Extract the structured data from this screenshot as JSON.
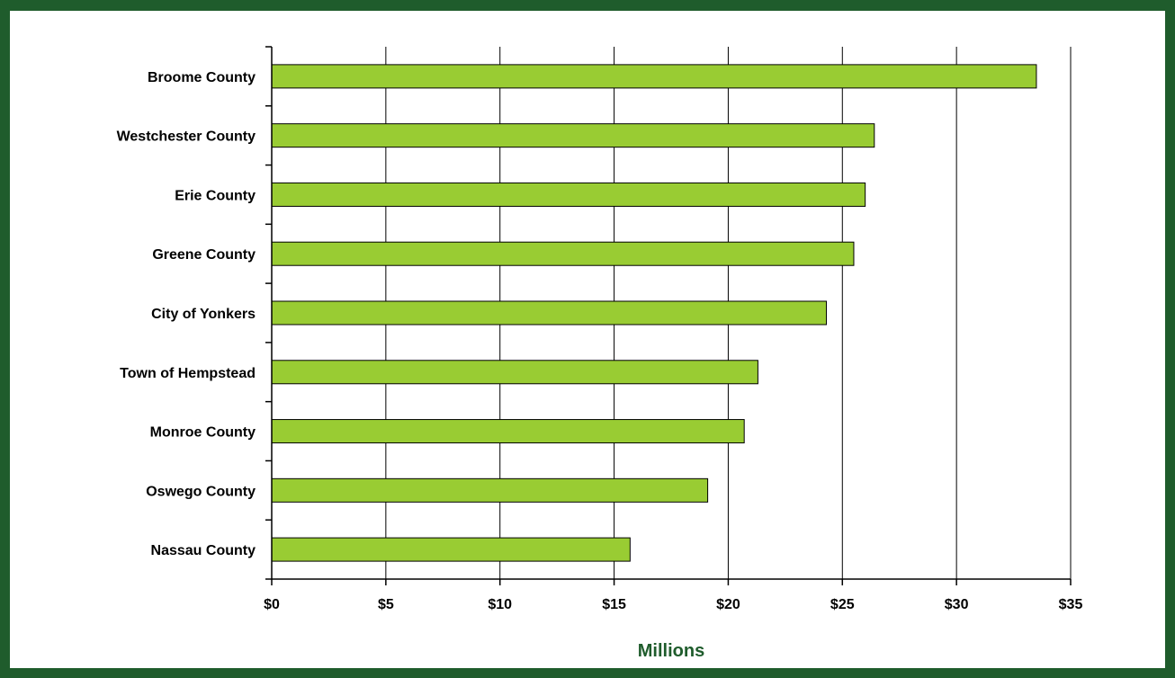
{
  "chart_data": {
    "type": "bar",
    "orientation": "horizontal",
    "title": "",
    "xlabel": "Millions",
    "ylabel": "",
    "categories": [
      "Broome County",
      "Westchester County",
      "Erie County",
      "Greene County",
      "City of Yonkers",
      "Town of Hempstead",
      "Monroe County",
      "Oswego County",
      "Nassau County"
    ],
    "values": [
      33.5,
      26.4,
      26.0,
      25.5,
      24.3,
      21.3,
      20.7,
      19.1,
      15.7
    ],
    "xlim": [
      0,
      35
    ],
    "xticks": [
      0,
      5,
      10,
      15,
      20,
      25,
      30,
      35
    ],
    "xtick_labels": [
      "$0",
      "$5",
      "$10",
      "$15",
      "$20",
      "$25",
      "$30",
      "$35"
    ],
    "grid": "vertical",
    "legend": "none",
    "colors": {
      "bar_fill": "#99cc33",
      "bar_stroke": "#000000",
      "frame": "#1f5c2c",
      "axis_title": "#1f5c2c",
      "gridline": "#000000"
    }
  }
}
